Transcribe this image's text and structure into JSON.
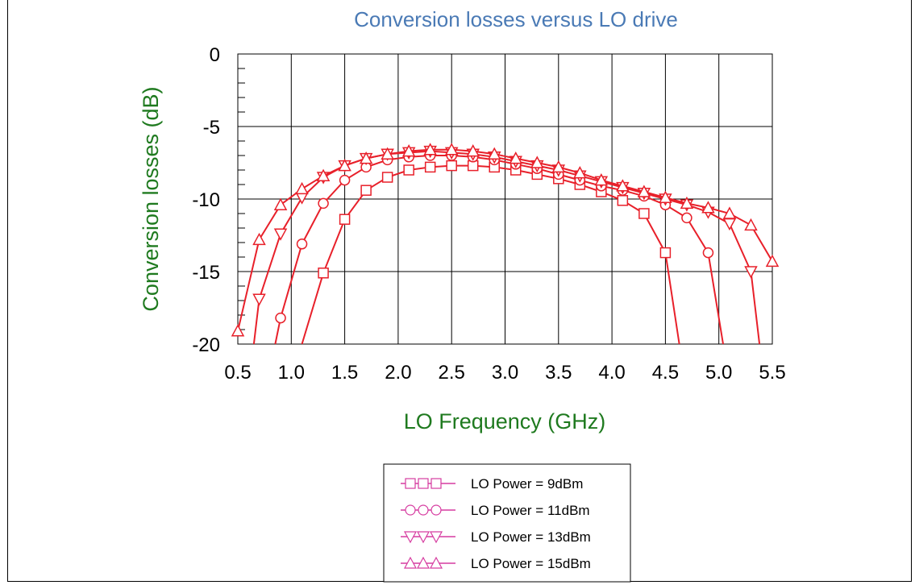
{
  "chart_data": {
    "type": "line",
    "title": "Conversion losses versus LO drive",
    "xlabel": "LO Frequency (GHz)",
    "ylabel": "Conversion losses (dB)",
    "xlim": [
      0.5,
      5.5
    ],
    "ylim": [
      -20,
      0
    ],
    "xticks": [
      "0.5",
      "1.0",
      "1.5",
      "2.0",
      "2.5",
      "3.0",
      "3.5",
      "4.0",
      "4.5",
      "5.0",
      "5.5"
    ],
    "yticks": [
      "0",
      "-5",
      "-10",
      "-15",
      "-20"
    ],
    "grid": true,
    "legend_position": "bottom-center",
    "line_color": "#e8202a",
    "legend_color": "#d63ca0",
    "series": [
      {
        "name": "LO Power = 9dBm",
        "marker": "square",
        "x": [
          1.1,
          1.3,
          1.5,
          1.7,
          1.9,
          2.1,
          2.3,
          2.5,
          2.7,
          2.9,
          3.1,
          3.3,
          3.5,
          3.7,
          3.9,
          4.1,
          4.3,
          4.5,
          4.63
        ],
        "y": [
          -20,
          -15.1,
          -11.4,
          -9.4,
          -8.5,
          -8.0,
          -7.8,
          -7.7,
          -7.7,
          -7.8,
          -8.0,
          -8.3,
          -8.6,
          -9.0,
          -9.5,
          -10.1,
          -11.0,
          -13.7,
          -20
        ],
        "markers": [
          false,
          true,
          true,
          true,
          true,
          true,
          true,
          true,
          true,
          true,
          true,
          true,
          true,
          true,
          true,
          true,
          true,
          true,
          false
        ]
      },
      {
        "name": "LO Power = 11dBm",
        "marker": "circle",
        "x": [
          0.85,
          0.9,
          1.1,
          1.3,
          1.5,
          1.7,
          1.9,
          2.1,
          2.3,
          2.5,
          2.7,
          2.9,
          3.1,
          3.3,
          3.5,
          3.7,
          3.9,
          4.1,
          4.3,
          4.5,
          4.7,
          4.9,
          5.04
        ],
        "y": [
          -20,
          -18.2,
          -13.1,
          -10.3,
          -8.7,
          -7.8,
          -7.3,
          -7.1,
          -7.0,
          -7.0,
          -7.1,
          -7.3,
          -7.6,
          -7.9,
          -8.3,
          -8.7,
          -9.1,
          -9.4,
          -9.8,
          -10.4,
          -11.3,
          -13.7,
          -20
        ],
        "markers": [
          false,
          true,
          true,
          true,
          true,
          true,
          true,
          true,
          true,
          true,
          true,
          true,
          true,
          true,
          true,
          true,
          true,
          true,
          true,
          true,
          true,
          true,
          false
        ]
      },
      {
        "name": "LO Power = 13dBm",
        "marker": "triangle-down",
        "x": [
          0.65,
          0.7,
          0.9,
          1.1,
          1.3,
          1.5,
          1.7,
          1.9,
          2.1,
          2.3,
          2.5,
          2.7,
          2.9,
          3.1,
          3.3,
          3.5,
          3.7,
          3.9,
          4.1,
          4.3,
          4.5,
          4.7,
          4.9,
          5.1,
          5.3,
          5.38
        ],
        "y": [
          -20,
          -16.9,
          -12.4,
          -9.9,
          -8.5,
          -7.7,
          -7.2,
          -6.9,
          -6.8,
          -6.7,
          -6.8,
          -6.9,
          -7.1,
          -7.4,
          -7.7,
          -8.0,
          -8.4,
          -8.8,
          -9.2,
          -9.6,
          -10.0,
          -10.4,
          -10.9,
          -11.7,
          -15.0,
          -20
        ],
        "markers": [
          false,
          true,
          true,
          true,
          true,
          true,
          true,
          true,
          true,
          true,
          true,
          true,
          true,
          true,
          true,
          true,
          true,
          true,
          true,
          true,
          true,
          true,
          true,
          true,
          true,
          false
        ]
      },
      {
        "name": "LO Power = 15dBm",
        "marker": "triangle-up",
        "x": [
          0.5,
          0.7,
          0.9,
          1.1,
          1.3,
          1.5,
          1.7,
          1.9,
          2.1,
          2.3,
          2.5,
          2.7,
          2.9,
          3.1,
          3.3,
          3.5,
          3.7,
          3.9,
          4.1,
          4.3,
          4.5,
          4.7,
          4.9,
          5.1,
          5.3,
          5.5
        ],
        "y": [
          -19.1,
          -12.8,
          -10.4,
          -9.3,
          -8.4,
          -7.7,
          -7.2,
          -6.9,
          -6.7,
          -6.6,
          -6.6,
          -6.7,
          -6.9,
          -7.2,
          -7.5,
          -7.8,
          -8.2,
          -8.7,
          -9.1,
          -9.5,
          -9.9,
          -10.3,
          -10.6,
          -11.0,
          -11.8,
          -14.3
        ],
        "markers": [
          true,
          true,
          true,
          true,
          true,
          true,
          true,
          true,
          true,
          true,
          true,
          true,
          true,
          true,
          true,
          true,
          true,
          true,
          true,
          true,
          true,
          true,
          true,
          true,
          true,
          true
        ]
      }
    ]
  }
}
